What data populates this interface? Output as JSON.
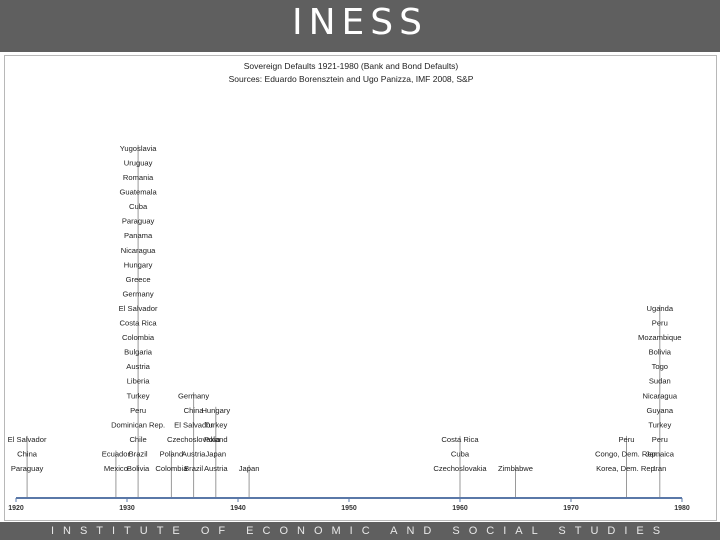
{
  "header": {
    "logo_text": "INESS"
  },
  "footer": {
    "text": "INSTITUTE OF ECONOMIC AND SOCIAL STUDIES"
  },
  "colors": {
    "axis": "#5a78a8",
    "line": "#9a9a9a",
    "text": "#222222",
    "banner": "#5f5f5f"
  },
  "chart_data": {
    "type": "scatter",
    "title": "Sovereign Defaults 1921-1980 (Bank and Bond Defaults)",
    "subtitle": "Sources: Eduardo Borensztein and Ugo Panizza, IMF 2008, S&P",
    "xlim": [
      1920,
      1980
    ],
    "x_ticks": [
      1920,
      1930,
      1940,
      1950,
      1960,
      1970,
      1980
    ],
    "events": [
      {
        "year": 1921,
        "anchor": "middle",
        "countries": [
          "Paraguay",
          "China",
          "El Salvador"
        ]
      },
      {
        "year": 1929,
        "anchor": "middle",
        "countries": [
          "Mexico",
          "Ecuador"
        ]
      },
      {
        "year": 1931,
        "anchor": "middle",
        "countries": [
          "Bolivia",
          "Brazil",
          "Chile",
          "Dominican Rep.",
          "Peru",
          "Turkey",
          "Liberia",
          "Austria",
          "Bulgaria",
          "Colombia",
          "Costa Rica",
          "El Salvador",
          "Germany",
          "Greece",
          "Hungary",
          "Nicaragua",
          "Panama",
          "Paraguay",
          "Cuba",
          "Guatemala",
          "Romania",
          "Uruguay",
          "Yugoslavia"
        ]
      },
      {
        "year": 1934,
        "anchor": "middle",
        "countries": [
          "Colombia",
          "Poland"
        ]
      },
      {
        "year": 1936,
        "anchor": "middle",
        "countries": [
          "Brazil",
          "Austria",
          "Czechoslovakia",
          "El Salvador",
          "China",
          "Germany"
        ]
      },
      {
        "year": 1938,
        "anchor": "middle",
        "countries": [
          "Austria",
          "Japan",
          "Poland",
          "Turkey",
          "Hungary"
        ]
      },
      {
        "year": 1941,
        "anchor": "middle",
        "countries": [
          "Japan"
        ]
      },
      {
        "year": 1960,
        "anchor": "middle",
        "countries": [
          "Czechoslovakia",
          "Cuba",
          "Costa Rica"
        ]
      },
      {
        "year": 1965,
        "anchor": "middle",
        "countries": [
          "Zimbabwe"
        ]
      },
      {
        "year": 1975,
        "anchor": "middle",
        "countries": [
          "Korea, Dem. Rep.",
          "Congo, Dem. Rep.",
          "Peru"
        ]
      },
      {
        "year": 1978,
        "anchor": "middle",
        "countries": [
          "Iran",
          "Jamaica",
          "Peru",
          "Turkey",
          "Guyana",
          "Nicaragua",
          "Sudan",
          "Togo",
          "Bolivia",
          "Mozambique",
          "Peru",
          "Uganda"
        ]
      }
    ]
  }
}
